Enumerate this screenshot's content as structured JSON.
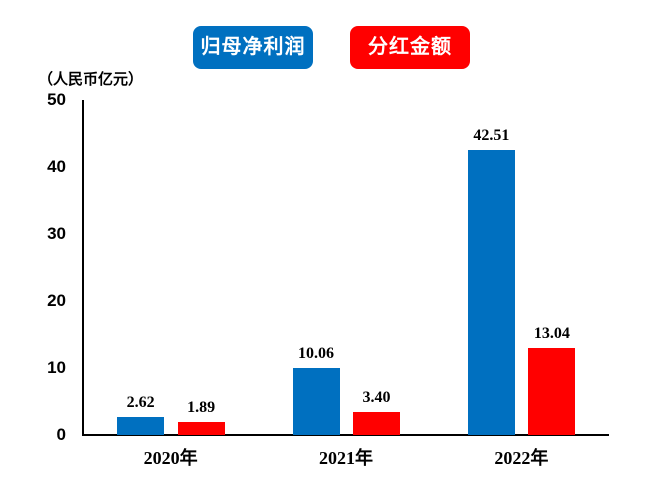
{
  "chart_data": {
    "type": "bar",
    "unit_label": "（人民币亿元）",
    "categories": [
      "2020年",
      "2021年",
      "2022年"
    ],
    "series": [
      {
        "name": "归母净利润",
        "color": "#0070C0",
        "values": [
          2.62,
          10.06,
          42.51
        ],
        "labels": [
          "2.62",
          "10.06",
          "42.51"
        ]
      },
      {
        "name": "分红金额",
        "color": "#FF0000",
        "values": [
          1.89,
          3.4,
          13.04
        ],
        "labels": [
          "1.89",
          "3.40",
          "13.04"
        ]
      }
    ],
    "ylim": [
      0,
      50
    ],
    "yticks": [
      0,
      10,
      20,
      30,
      40,
      50
    ],
    "grid": false,
    "legend_position": "top"
  }
}
